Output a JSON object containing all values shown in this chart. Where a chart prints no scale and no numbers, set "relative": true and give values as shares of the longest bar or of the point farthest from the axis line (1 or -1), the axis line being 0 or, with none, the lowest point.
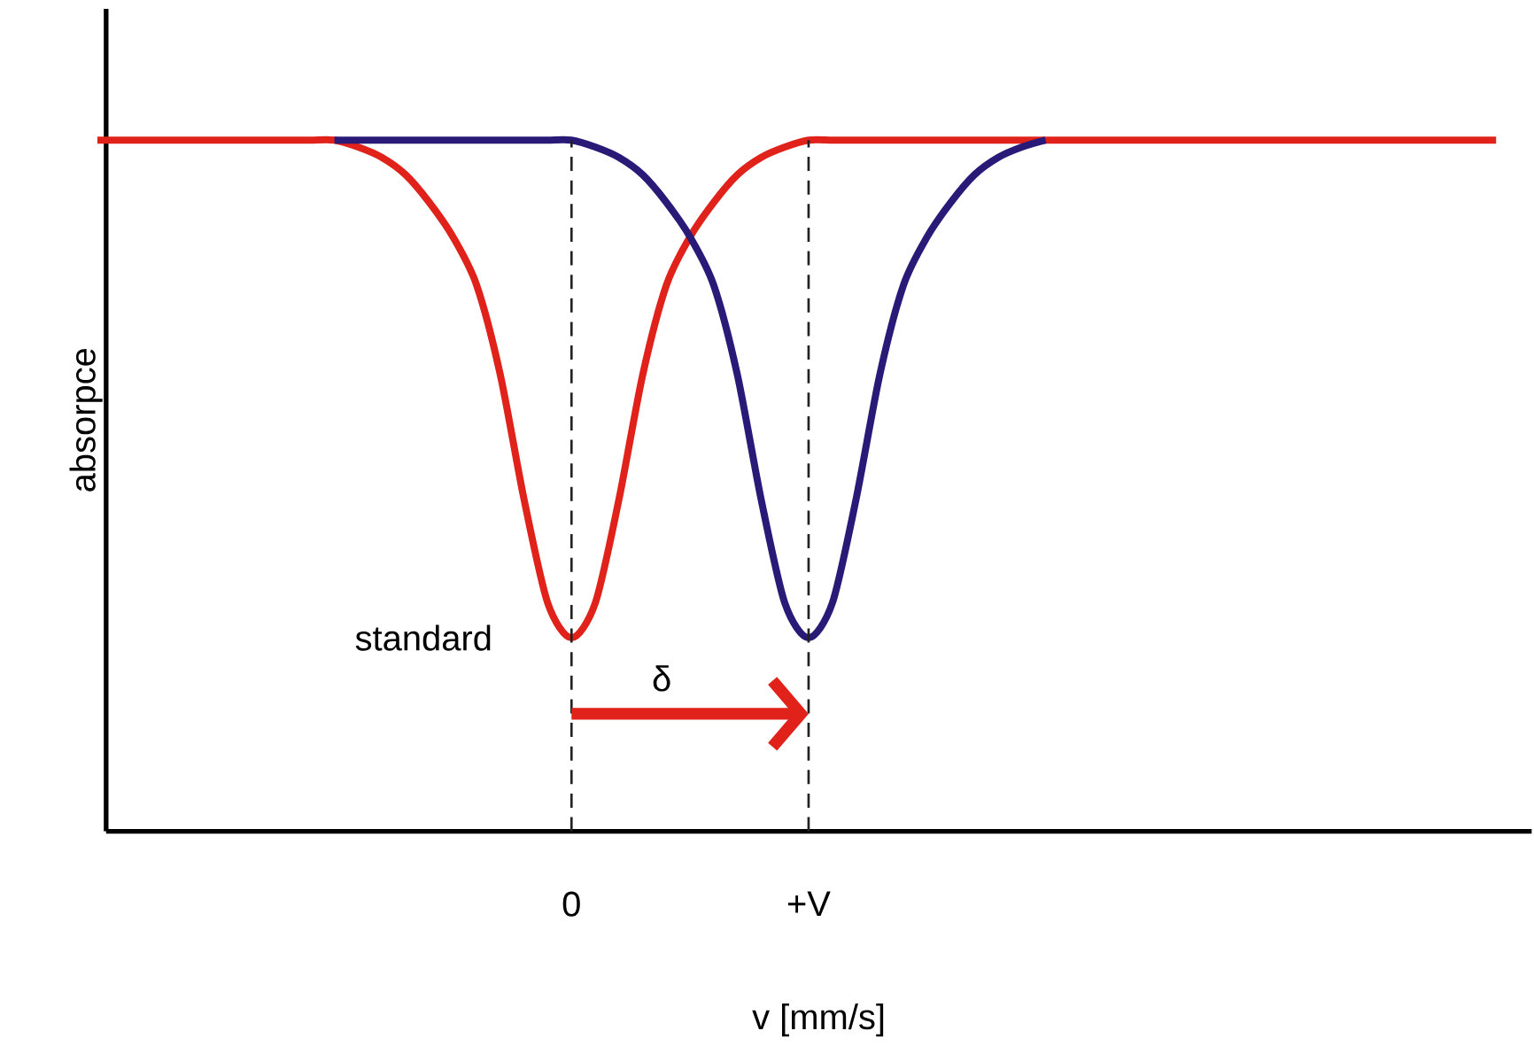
{
  "chart_data": {
    "type": "line",
    "relative": true,
    "xlabel": "v [mm/s]",
    "ylabel": "absorpce",
    "categories": [
      null,
      null,
      null,
      null,
      null,
      null,
      null,
      null,
      null,
      null,
      null,
      null,
      null,
      null,
      null,
      null,
      null,
      null,
      null,
      null,
      "0",
      null,
      null,
      null,
      null,
      null,
      null,
      null,
      null,
      null,
      "+V",
      null,
      null,
      null,
      null,
      null,
      null,
      null,
      null,
      null,
      null,
      null,
      null,
      null,
      null,
      null,
      null,
      null,
      null,
      null,
      null,
      null,
      null,
      null,
      null,
      null,
      null,
      null,
      null,
      null,
      null
    ],
    "tick_labels": "x",
    "legend": false,
    "grid": false,
    "marker": "none",
    "line_style": "solid",
    "series": [
      {
        "color": "#e0221b",
        "values": [
          1,
          1,
          1,
          1,
          1,
          1,
          1,
          1,
          1,
          1,
          1,
          0.99,
          0.975,
          0.95,
          0.91,
          0.86,
          0.79,
          0.66,
          0.48,
          0.33,
          0.28,
          0.33,
          0.48,
          0.66,
          0.79,
          0.86,
          0.91,
          0.95,
          0.975,
          0.99,
          1,
          1,
          1,
          1,
          1,
          1,
          1,
          1,
          1,
          1,
          1,
          1,
          1,
          1,
          1,
          1,
          1,
          1,
          1,
          1,
          1,
          1,
          1,
          1,
          1,
          1,
          1,
          1,
          1,
          1,
          null
        ]
      },
      {
        "color": "#2a1a78",
        "values": [
          null,
          null,
          null,
          null,
          null,
          null,
          null,
          null,
          null,
          null,
          1,
          1,
          1,
          1,
          1,
          1,
          1,
          1,
          1,
          1,
          1,
          0.99,
          0.975,
          0.95,
          0.91,
          0.86,
          0.79,
          0.66,
          0.48,
          0.33,
          0.28,
          0.33,
          0.48,
          0.66,
          0.79,
          0.86,
          0.91,
          0.95,
          0.975,
          0.99,
          1,
          null,
          null,
          null,
          null,
          null,
          null,
          null,
          null,
          null,
          null,
          null,
          null,
          null,
          null,
          null,
          null,
          null,
          null,
          null,
          null
        ]
      }
    ],
    "ref_lines": [
      {
        "axis": "x",
        "value": "0",
        "color": "#222222",
        "line_style": "dashed"
      },
      {
        "axis": "x",
        "value": "+V",
        "color": "#222222",
        "line_style": "dashed"
      }
    ],
    "annotations": [
      {
        "text": "standard",
        "x": "0",
        "y": 0.28
      },
      "δ"
    ]
  }
}
